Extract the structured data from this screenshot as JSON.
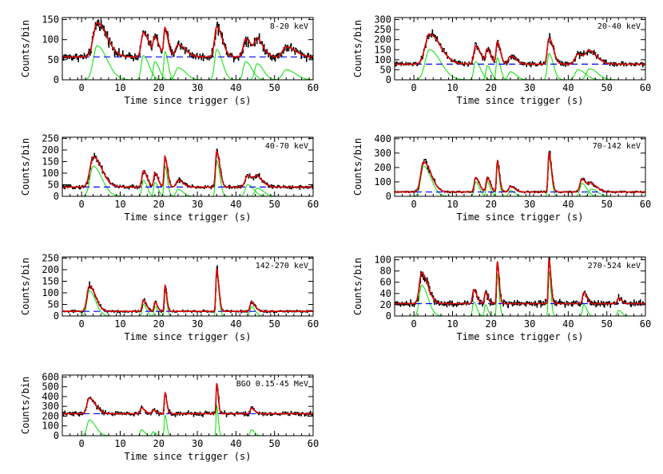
{
  "chart_data": [
    {
      "type": "line",
      "band_label": "8-20 keV",
      "ylabel": "Counts/bin",
      "xlabel": "Time since trigger (s)",
      "xlim": [
        -5,
        60
      ],
      "ylim": [
        0,
        155
      ],
      "x_ticks": [
        0,
        10,
        20,
        30,
        40,
        50,
        60
      ],
      "y_ticks": [
        0,
        50,
        100,
        150
      ],
      "background": 57,
      "pulses": [
        {
          "t": 4,
          "a": 85,
          "w": 1.6
        },
        {
          "t": 16,
          "a": 60,
          "w": 0.9
        },
        {
          "t": 19,
          "a": 45,
          "w": 0.7
        },
        {
          "t": 21.6,
          "a": 70,
          "w": 0.5
        },
        {
          "t": 25,
          "a": 30,
          "w": 1.2
        },
        {
          "t": 35,
          "a": 75,
          "w": 0.9
        },
        {
          "t": 42.5,
          "a": 45,
          "w": 1.0
        },
        {
          "t": 45.5,
          "a": 40,
          "w": 1.0
        },
        {
          "t": 53,
          "a": 25,
          "w": 1.5
        }
      ]
    },
    {
      "type": "line",
      "band_label": "20-40 keV",
      "ylabel": "Counts/bin",
      "xlabel": "Time since trigger (s)",
      "xlim": [
        -5,
        60
      ],
      "ylim": [
        0,
        310
      ],
      "x_ticks": [
        0,
        10,
        20,
        30,
        40,
        50,
        60
      ],
      "y_ticks": [
        0,
        50,
        100,
        150,
        200,
        250,
        300
      ],
      "background": 78,
      "pulses": [
        {
          "t": 4,
          "a": 150,
          "w": 1.8
        },
        {
          "t": 16,
          "a": 90,
          "w": 0.8
        },
        {
          "t": 19,
          "a": 70,
          "w": 0.6
        },
        {
          "t": 21.6,
          "a": 110,
          "w": 0.5
        },
        {
          "t": 25,
          "a": 40,
          "w": 0.9
        },
        {
          "t": 35,
          "a": 130,
          "w": 0.7
        },
        {
          "t": 42.5,
          "a": 50,
          "w": 1.2
        },
        {
          "t": 45.5,
          "a": 55,
          "w": 1.3
        }
      ]
    },
    {
      "type": "line",
      "band_label": "40-70 keV",
      "ylabel": "Counts/bin",
      "xlabel": "Time since trigger (s)",
      "xlim": [
        -5,
        60
      ],
      "ylim": [
        0,
        255
      ],
      "x_ticks": [
        0,
        10,
        20,
        30,
        40,
        50,
        60
      ],
      "y_ticks": [
        0,
        50,
        100,
        150,
        200,
        250
      ],
      "background": 40,
      "pulses": [
        {
          "t": 3,
          "a": 130,
          "w": 1.4
        },
        {
          "t": 16,
          "a": 70,
          "w": 0.6
        },
        {
          "t": 19,
          "a": 60,
          "w": 0.5
        },
        {
          "t": 21.6,
          "a": 130,
          "w": 0.4
        },
        {
          "t": 25,
          "a": 30,
          "w": 0.8
        },
        {
          "t": 35,
          "a": 155,
          "w": 0.5
        },
        {
          "t": 43,
          "a": 50,
          "w": 1.0
        },
        {
          "t": 45.5,
          "a": 35,
          "w": 1.0
        }
      ]
    },
    {
      "type": "line",
      "band_label": "70-142 keV",
      "ylabel": "Counts/bin",
      "xlabel": "Time since trigger (s)",
      "xlim": [
        -5,
        60
      ],
      "ylim": [
        0,
        410
      ],
      "x_ticks": [
        0,
        10,
        20,
        30,
        40,
        50,
        60
      ],
      "y_ticks": [
        0,
        100,
        200,
        300,
        400
      ],
      "background": 30,
      "pulses": [
        {
          "t": 2.5,
          "a": 210,
          "w": 1.2
        },
        {
          "t": 16,
          "a": 100,
          "w": 0.6
        },
        {
          "t": 19,
          "a": 100,
          "w": 0.5
        },
        {
          "t": 21.6,
          "a": 210,
          "w": 0.35
        },
        {
          "t": 25,
          "a": 40,
          "w": 0.7
        },
        {
          "t": 35,
          "a": 270,
          "w": 0.4
        },
        {
          "t": 43.5,
          "a": 90,
          "w": 0.8
        },
        {
          "t": 46,
          "a": 50,
          "w": 1.0
        }
      ]
    },
    {
      "type": "line",
      "band_label": "142-270 keV",
      "ylabel": "Counts/bin",
      "xlabel": "Time since trigger (s)",
      "xlim": [
        -5,
        60
      ],
      "ylim": [
        0,
        255
      ],
      "x_ticks": [
        0,
        10,
        20,
        30,
        40,
        50,
        60
      ],
      "y_ticks": [
        0,
        50,
        100,
        150,
        200,
        250
      ],
      "background": 20,
      "pulses": [
        {
          "t": 2,
          "a": 110,
          "w": 1.0
        },
        {
          "t": 16,
          "a": 50,
          "w": 0.5
        },
        {
          "t": 19,
          "a": 40,
          "w": 0.4
        },
        {
          "t": 21.6,
          "a": 110,
          "w": 0.3
        },
        {
          "t": 35,
          "a": 180,
          "w": 0.35
        },
        {
          "t": 44,
          "a": 40,
          "w": 0.6
        }
      ]
    },
    {
      "type": "line",
      "band_label": "270-524 keV",
      "ylabel": "Counts/bin",
      "xlabel": "Time since trigger (s)",
      "xlim": [
        -5,
        60
      ],
      "ylim": [
        0,
        105
      ],
      "x_ticks": [
        0,
        10,
        20,
        30,
        40,
        50,
        60
      ],
      "y_ticks": [
        0,
        20,
        40,
        60,
        80,
        100
      ],
      "background": 22,
      "pulses": [
        {
          "t": 2,
          "a": 55,
          "w": 1.0
        },
        {
          "t": 15.5,
          "a": 25,
          "w": 0.5
        },
        {
          "t": 18.5,
          "a": 20,
          "w": 0.4
        },
        {
          "t": 21.6,
          "a": 75,
          "w": 0.3
        },
        {
          "t": 35,
          "a": 80,
          "w": 0.3
        },
        {
          "t": 44,
          "a": 20,
          "w": 0.5
        },
        {
          "t": 53,
          "a": 10,
          "w": 0.5
        }
      ]
    },
    {
      "type": "line",
      "band_label": "BGO 0.15-45 MeV",
      "ylabel": "Counts/bin",
      "xlabel": "Time since trigger (s)",
      "xlim": [
        -5,
        60
      ],
      "ylim": [
        0,
        620
      ],
      "x_ticks": [
        0,
        10,
        20,
        30,
        40,
        50,
        60
      ],
      "y_ticks": [
        0,
        100,
        200,
        300,
        400,
        500,
        600
      ],
      "background": 225,
      "pulses": [
        {
          "t": 2,
          "a": 160,
          "w": 1.0
        },
        {
          "t": 15.5,
          "a": 60,
          "w": 0.5
        },
        {
          "t": 18.5,
          "a": 40,
          "w": 0.4
        },
        {
          "t": 21.6,
          "a": 210,
          "w": 0.3
        },
        {
          "t": 35,
          "a": 310,
          "w": 0.25
        },
        {
          "t": 44,
          "a": 60,
          "w": 0.5
        }
      ]
    }
  ],
  "style": {
    "data_color": "#000000",
    "fit_color": "#e00000",
    "component_color": "#00e000",
    "background_color": "#0000ff"
  }
}
